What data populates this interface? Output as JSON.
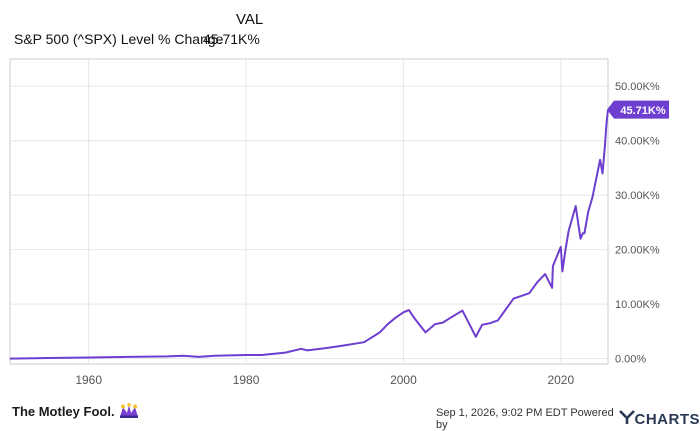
{
  "legend": {
    "column_header": "VAL",
    "series_label": "S&P 500 (^SPX) Level % Change",
    "series_value": "45.71K%"
  },
  "colors": {
    "line": "#6d3ecf",
    "grid": "#e6e6e6",
    "frame": "#cccccc",
    "tick_text": "#555555",
    "badge": "#6d3ecf"
  },
  "chart_data": {
    "type": "line",
    "x_tick_labels": [
      "1960",
      "1980",
      "2000",
      "2020"
    ],
    "y_tick_labels": [
      "0.00%",
      "10.00K%",
      "20.00K%",
      "30.00K%",
      "40.00K%",
      "50.00K%"
    ],
    "x_ticks": [
      1960,
      1980,
      2000,
      2020
    ],
    "y_ticks": [
      0,
      10000,
      20000,
      30000,
      40000,
      50000
    ],
    "xlim": [
      1950,
      2026
    ],
    "ylim": [
      -1000,
      55000
    ],
    "grid": true,
    "end_label": "45.71K%",
    "series": [
      {
        "x": [
          1950,
          1955,
          1960,
          1965,
          1970,
          1972,
          1974,
          1976,
          1980,
          1982,
          1985,
          1987,
          1987.8,
          1990,
          1992,
          1995,
          1997,
          1998,
          1999,
          2000,
          2000.7,
          2001.5,
          2002.8,
          2004,
          2005,
          2006,
          2007.5,
          2008.5,
          2009.2,
          2010,
          2011,
          2012,
          2013,
          2014,
          2015,
          2016,
          2017,
          2018,
          2018.9,
          2019,
          2020,
          2020.2,
          2020.6,
          2021,
          2021.9,
          2022.5,
          2022.8,
          2023,
          2023.5,
          2024,
          2024.5,
          2025,
          2025.3,
          2025.6,
          2025.8,
          2026
        ],
        "y": [
          0,
          100,
          200,
          300,
          400,
          500,
          300,
          500,
          650,
          650,
          1100,
          1800,
          1500,
          1900,
          2300,
          3000,
          4800,
          6300,
          7500,
          8500,
          8900,
          7200,
          4800,
          6300,
          6600,
          7500,
          8800,
          6000,
          4000,
          6200,
          6500,
          7000,
          9000,
          11000,
          11500,
          12000,
          14000,
          15500,
          13000,
          17000,
          20500,
          16000,
          20000,
          23500,
          28000,
          22000,
          23000,
          23000,
          27000,
          29500,
          33000,
          36500,
          34000,
          39000,
          43000,
          45710
        ]
      }
    ]
  },
  "footer": {
    "brand": "The Motley Fool.",
    "timestamp": "Sep 1, 2026, 9:02 PM EDT Powered by",
    "ycharts": "CHARTS"
  }
}
